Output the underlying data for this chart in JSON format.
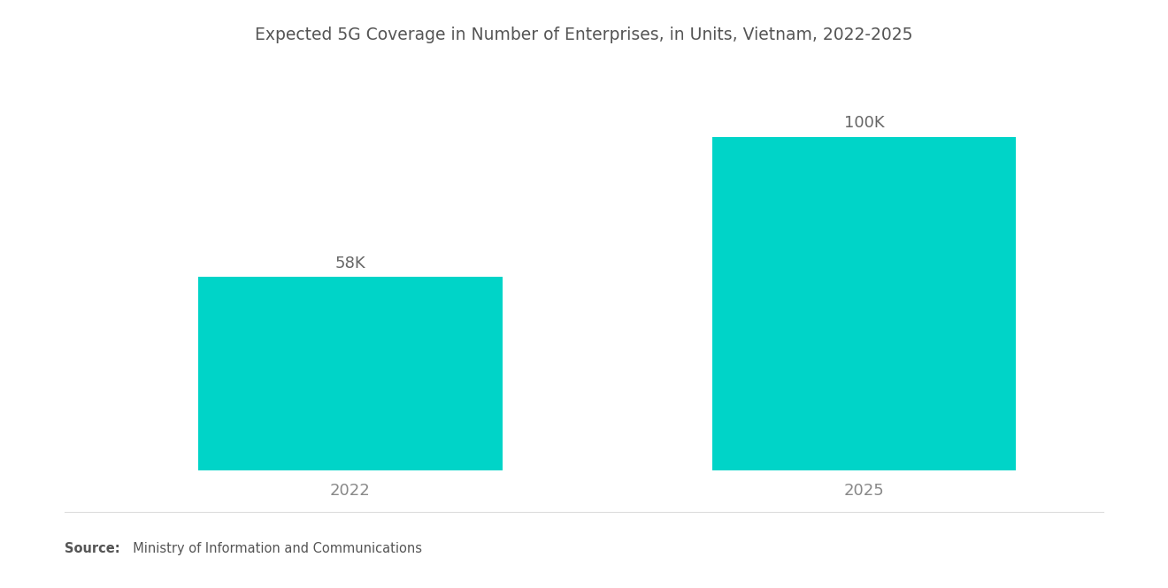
{
  "title": "Expected 5G Coverage in Number of Enterprises, in Units, Vietnam, 2022-2025",
  "categories": [
    "2022",
    "2025"
  ],
  "values": [
    58000,
    100000
  ],
  "labels": [
    "58K",
    "100K"
  ],
  "bar_color": "#00D4C8",
  "background_color": "#ffffff",
  "title_fontsize": 13.5,
  "label_fontsize": 13,
  "tick_fontsize": 13,
  "source_bold": "Source:",
  "source_rest": "  Ministry of Information and Communications",
  "ylim": [
    0,
    120000
  ],
  "xlim": [
    -0.1,
    2.1
  ],
  "bar_positions": [
    0.5,
    1.6
  ],
  "bar_width": 0.65
}
